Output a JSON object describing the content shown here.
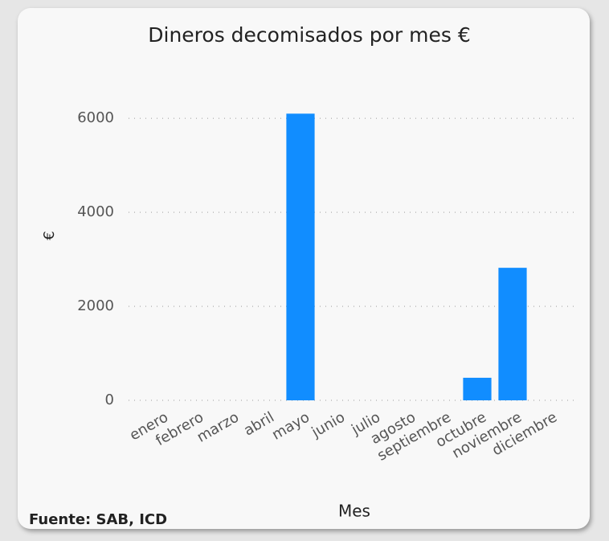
{
  "chart_data": {
    "type": "bar",
    "title": "Dineros decomisados por mes €",
    "categories": [
      "enero",
      "febrero",
      "marzo",
      "abril",
      "mayo",
      "junio",
      "julio",
      "agosto",
      "septiembre",
      "octubre",
      "noviembre",
      "diciembre"
    ],
    "values": [
      0,
      0,
      0,
      0,
      6100,
      0,
      0,
      0,
      0,
      480,
      2820,
      0
    ],
    "color": "#118dff",
    "ylim": [
      0,
      6500
    ],
    "yticks": [
      0,
      2000,
      4000,
      6000
    ],
    "grid": true,
    "y_label": "€",
    "x_label": "Mes",
    "source": "Fuente: SAB, ICD"
  }
}
